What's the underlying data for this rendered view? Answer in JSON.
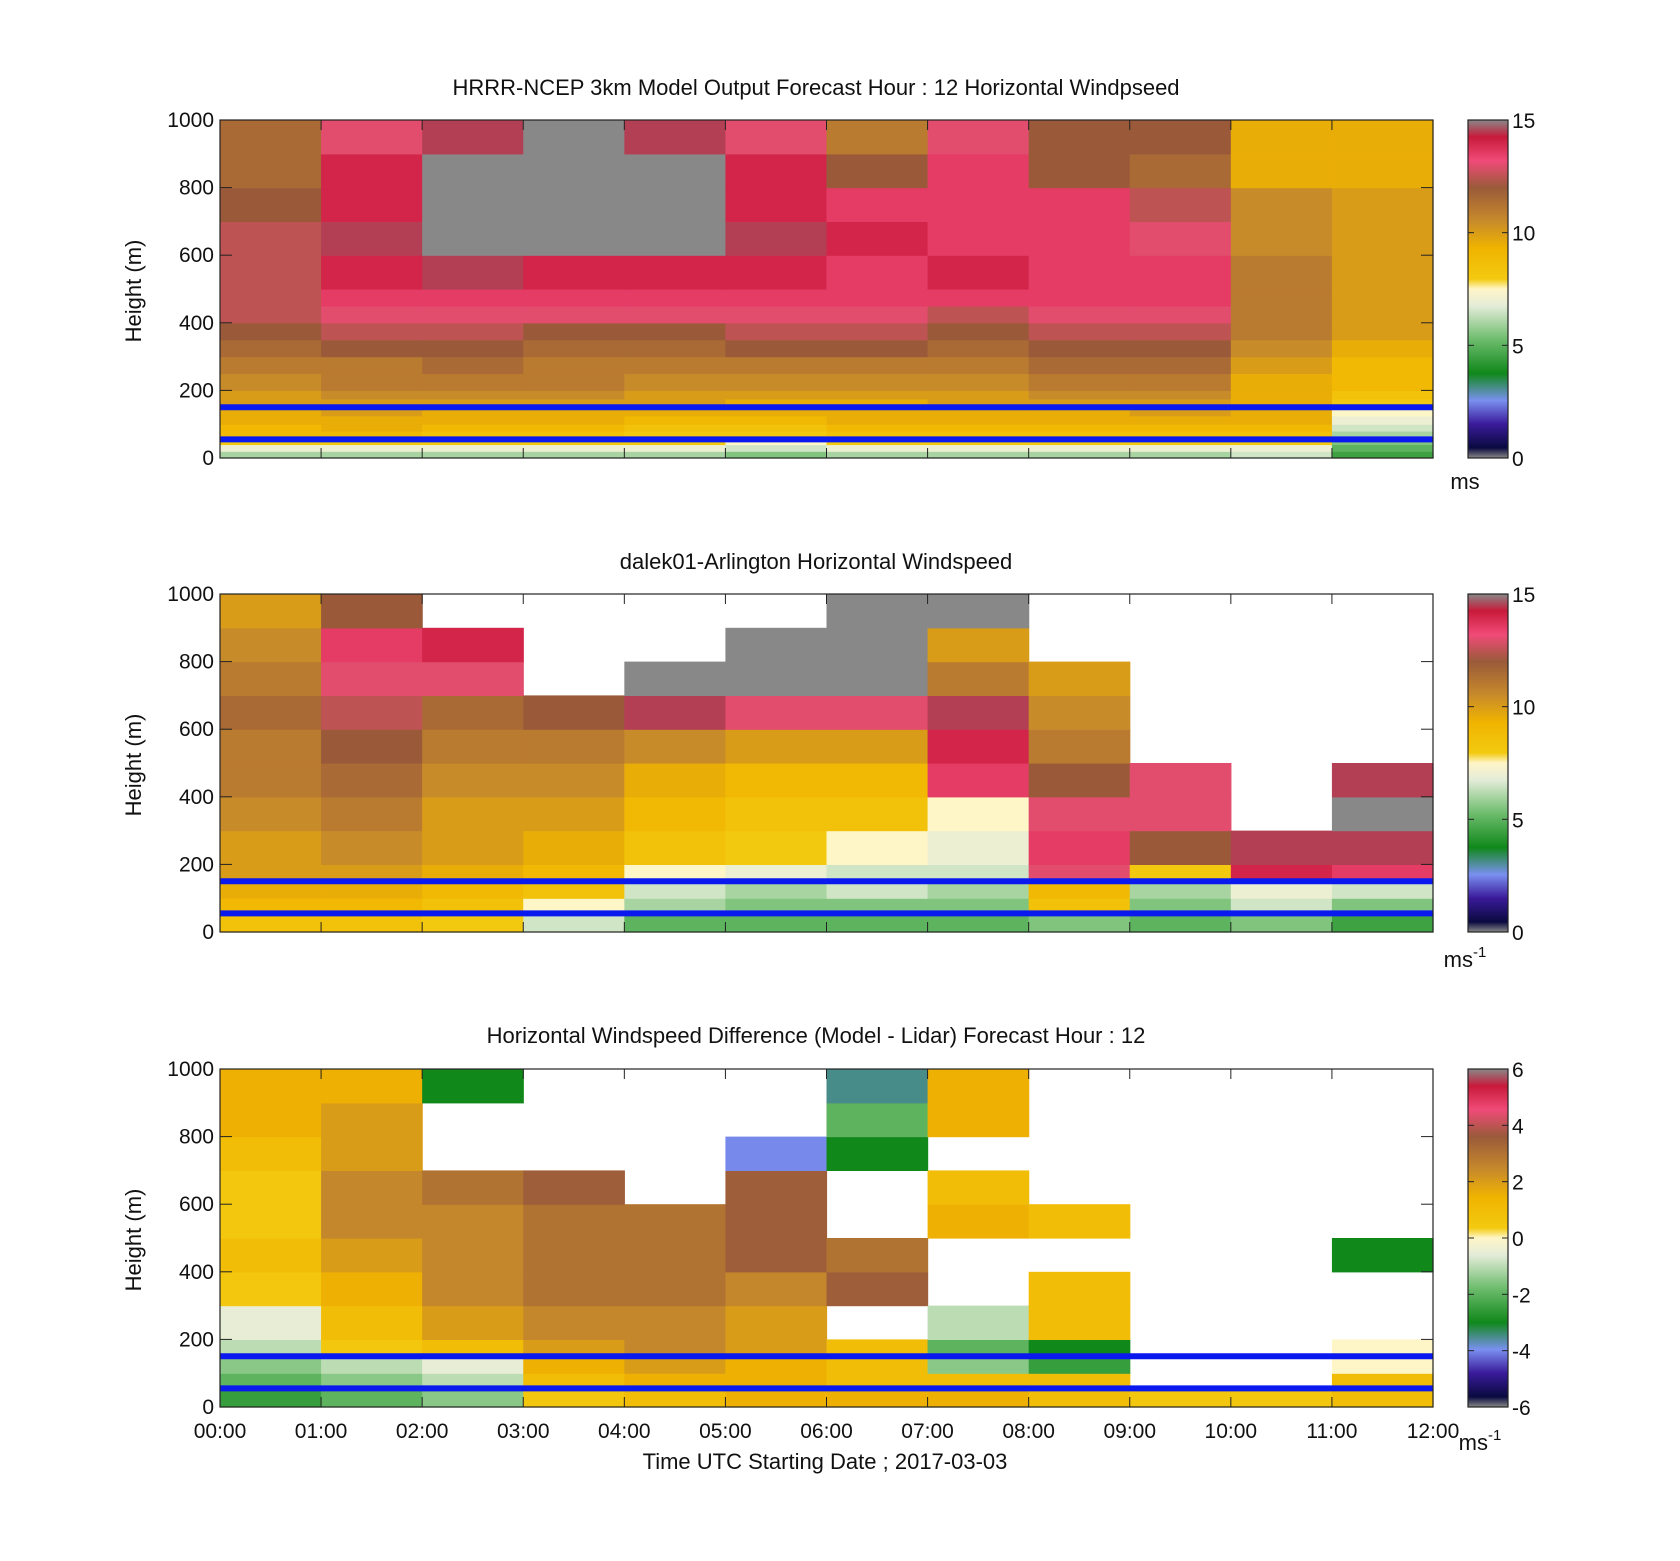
{
  "chart_data": [
    {
      "type": "heatmap",
      "title": "HRRR-NCEP 3km Model Output   Forecast Hour : 12 Horizontal Windpseed",
      "ylabel": "Height (m)",
      "xlabel": "",
      "xlim": [
        0,
        12
      ],
      "ylim": [
        0,
        1000
      ],
      "yticks": [
        "0",
        "200",
        "400",
        "600",
        "800",
        "1000"
      ],
      "xticks": [],
      "colorbar": {
        "range": [
          0,
          15
        ],
        "ticks": [
          "0",
          "5",
          "10",
          "15"
        ],
        "unit": "ms",
        "unit_sup": ""
      },
      "reference_lines_m": [
        55,
        150
      ],
      "time_bins_h": [
        0,
        1,
        2,
        3,
        4,
        5,
        6,
        7,
        8,
        9,
        10,
        11,
        12
      ],
      "height_bins_m": [
        0,
        20,
        40,
        60,
        80,
        100,
        125,
        150,
        175,
        200,
        250,
        300,
        350,
        400,
        450,
        500,
        600,
        700,
        800,
        900,
        1000
      ],
      "values": [
        [
          6,
          7,
          8,
          9,
          9,
          9.5,
          9.5,
          10,
          10,
          10.5,
          11,
          11.5,
          12,
          12.5,
          12.5,
          12.5,
          12.5,
          12,
          11.5,
          11.5
        ],
        [
          6,
          7,
          8,
          9,
          9.5,
          9.5,
          10,
          10,
          10.5,
          11,
          11,
          12,
          12.5,
          13,
          13.5,
          14,
          14.5,
          14,
          14,
          13
        ],
        [
          6,
          7,
          8,
          8.5,
          9,
          9.5,
          9.5,
          10,
          10.5,
          11,
          11.5,
          12,
          12.5,
          13,
          13.5,
          14.5,
          0,
          0,
          0,
          14.5
        ],
        [
          6,
          7,
          8,
          8.5,
          9,
          9.5,
          9.5,
          10,
          10.5,
          11,
          11,
          11.5,
          12,
          13,
          13.5,
          14,
          0,
          0,
          0,
          0
        ],
        [
          6,
          7,
          8,
          8,
          8.5,
          9,
          9.5,
          10,
          10,
          10.5,
          11,
          11.5,
          12,
          13,
          13.5,
          14,
          0,
          0,
          0,
          14.5
        ],
        [
          5.5,
          6.5,
          7.5,
          8,
          8.5,
          9,
          9.5,
          9.5,
          10,
          10.5,
          11,
          12,
          12.5,
          13,
          13.5,
          14,
          14.5,
          14,
          14,
          13
        ],
        [
          6,
          7,
          8,
          8.5,
          9,
          9.5,
          9.5,
          9.5,
          10,
          10.5,
          11,
          12,
          12.5,
          13,
          13.5,
          13.5,
          14,
          13.5,
          12,
          11
        ],
        [
          6,
          7,
          8,
          8.5,
          9,
          9.5,
          9.5,
          10,
          10,
          10.5,
          11,
          11.5,
          12,
          12.5,
          13.5,
          14,
          13.5,
          13.5,
          13.5,
          13
        ],
        [
          6,
          7,
          8,
          8.5,
          9,
          9.5,
          9.5,
          10,
          10.5,
          11,
          11.5,
          12,
          12.5,
          13,
          13.5,
          13.5,
          13.5,
          13.5,
          12,
          12
        ],
        [
          6,
          7,
          8,
          8.5,
          9,
          9.5,
          10,
          10,
          10.5,
          11,
          11.5,
          12,
          12.5,
          13,
          13.5,
          13.5,
          13,
          12.5,
          11.5,
          12
        ],
        [
          6.5,
          7,
          8,
          8.5,
          9,
          9.5,
          9.5,
          9.5,
          9.5,
          9.5,
          10,
          10.5,
          11,
          11,
          11,
          11,
          10.5,
          10.5,
          9.5,
          9.5
        ],
        [
          4.5,
          5,
          5.5,
          6,
          6.5,
          7,
          7.5,
          8,
          8.5,
          9,
          9,
          9.5,
          10,
          10,
          10,
          10,
          10,
          10,
          9.5,
          9.5
        ]
      ]
    },
    {
      "type": "heatmap",
      "title": "dalek01-Arlington  Horizontal Windspeed",
      "ylabel": "Height (m)",
      "xlabel": "",
      "xlim": [
        0,
        12
      ],
      "ylim": [
        0,
        1000
      ],
      "yticks": [
        "0",
        "200",
        "400",
        "600",
        "800",
        "1000"
      ],
      "xticks": [],
      "colorbar": {
        "range": [
          0,
          15
        ],
        "ticks": [
          "0",
          "5",
          "10",
          "15"
        ],
        "unit": "ms",
        "unit_sup": "-1"
      },
      "reference_lines_m": [
        55,
        150
      ],
      "time_bins_h": [
        0,
        1,
        2,
        3,
        4,
        5,
        6,
        7,
        8,
        9,
        10,
        11,
        12
      ],
      "height_bins_m": [
        0,
        50,
        100,
        150,
        200,
        300,
        400,
        500,
        600,
        700,
        800,
        900,
        1000
      ],
      "values": [
        [
          8.5,
          9,
          9.5,
          10,
          10,
          10.5,
          11,
          11,
          11.5,
          11,
          10.5,
          10
        ],
        [
          8.5,
          9,
          9.5,
          10,
          10.5,
          11,
          11.5,
          12,
          12.5,
          13,
          13.5,
          12
        ],
        [
          8,
          8.5,
          9,
          9.5,
          10,
          10,
          10.5,
          11,
          11.5,
          13,
          14,
          null
        ],
        [
          6.5,
          7.5,
          8.5,
          9,
          9.5,
          10,
          10.5,
          11,
          12,
          null,
          null,
          null
        ],
        [
          5,
          6,
          6.5,
          7.5,
          8.5,
          9,
          9.5,
          10.5,
          14.5,
          0,
          null,
          null
        ],
        [
          5,
          5.5,
          6,
          7,
          8,
          8.5,
          9,
          10,
          13,
          0,
          0,
          null
        ],
        [
          5,
          5.5,
          6.5,
          6.5,
          7.5,
          8.5,
          9,
          10,
          13,
          0,
          0,
          0
        ],
        [
          5,
          5.5,
          6,
          6.5,
          7,
          7.5,
          13.5,
          14,
          14.5,
          11,
          10,
          0
        ],
        [
          5.5,
          8.5,
          9,
          13,
          13.5,
          13,
          12,
          11,
          10.5,
          10,
          null,
          null
        ],
        [
          5,
          5.5,
          6,
          8,
          12,
          13,
          13,
          null,
          null,
          null,
          null,
          null
        ],
        [
          5.5,
          6.5,
          7,
          14,
          14.5,
          null,
          null,
          null,
          null,
          null,
          null,
          null
        ],
        [
          4.5,
          5.5,
          6.5,
          13.5,
          14.5,
          0,
          14.5,
          null,
          null,
          null,
          null,
          null
        ]
      ]
    },
    {
      "type": "heatmap",
      "title": "Horizontal Windspeed Difference (Model - Lidar) Forecast Hour : 12",
      "ylabel": "Height (m)",
      "xlabel": "Time UTC  Starting Date ; 2017-03-03",
      "xlim": [
        0,
        12
      ],
      "ylim": [
        0,
        1000
      ],
      "yticks": [
        "0",
        "200",
        "400",
        "600",
        "800",
        "1000"
      ],
      "xticks": [
        "00:00",
        "01:00",
        "02:00",
        "03:00",
        "04:00",
        "05:00",
        "06:00",
        "07:00",
        "08:00",
        "09:00",
        "10:00",
        "11:00",
        "12:00"
      ],
      "colorbar": {
        "range": [
          -6,
          6
        ],
        "ticks": [
          "-6",
          "-4",
          "-2",
          "0",
          "2",
          "4",
          "6"
        ],
        "unit": "ms",
        "unit_sup": "-1"
      },
      "reference_lines_m": [
        55,
        150
      ],
      "time_bins_h": [
        0,
        1,
        2,
        3,
        4,
        5,
        6,
        7,
        8,
        9,
        10,
        11,
        12
      ],
      "height_bins_m": [
        0,
        50,
        100,
        150,
        200,
        300,
        400,
        500,
        600,
        700,
        800,
        900,
        1000
      ],
      "values": [
        [
          -2.5,
          -2,
          -1.5,
          -1,
          -0.5,
          0.5,
          1,
          0.5,
          0.5,
          1,
          1.5,
          1.5
        ],
        [
          -2,
          -1.5,
          -1,
          0.5,
          1,
          1.5,
          2,
          2.5,
          2.5,
          2,
          2,
          1.5
        ],
        [
          -1.5,
          -1,
          -0.5,
          1,
          2,
          2.5,
          2.5,
          2.5,
          3,
          null,
          null,
          -3
        ],
        [
          0.5,
          1,
          1.5,
          2,
          2.5,
          3,
          3,
          3,
          3.5,
          null,
          null,
          null
        ],
        [
          1,
          1.5,
          2,
          2.5,
          2.5,
          3,
          3,
          3,
          null,
          null,
          null,
          null
        ],
        [
          1.5,
          1.5,
          1.5,
          2,
          2,
          2.5,
          3.5,
          3.5,
          3.5,
          -4,
          null,
          null
        ],
        [
          1.5,
          1,
          1,
          1,
          null,
          3.5,
          3,
          null,
          null,
          -3,
          -2,
          -3.5
        ],
        [
          1.5,
          1,
          -1.5,
          -2,
          -1,
          null,
          null,
          1.5,
          1,
          null,
          1.5,
          1.5
        ],
        [
          1,
          1,
          -2.5,
          -3,
          1,
          1,
          null,
          1,
          null,
          null,
          null,
          null
        ],
        [
          0.5,
          null,
          null,
          null,
          null,
          null,
          null,
          null,
          null,
          null,
          null,
          null
        ],
        [
          0.5,
          null,
          null,
          null,
          null,
          null,
          null,
          null,
          null,
          null,
          null,
          null
        ],
        [
          1,
          1,
          0,
          0,
          null,
          null,
          -3,
          null,
          null,
          null,
          null,
          null
        ]
      ]
    }
  ]
}
